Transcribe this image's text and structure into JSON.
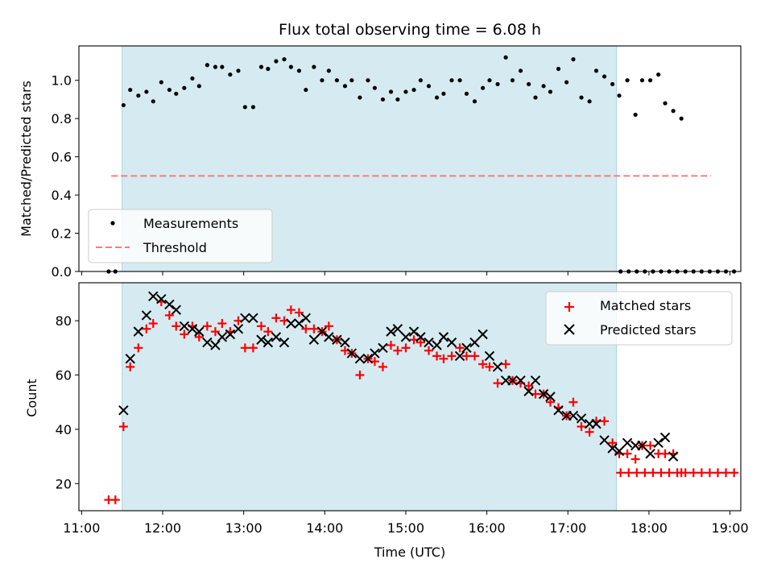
{
  "chart_data": [
    {
      "type": "scatter",
      "title": "Flux total observing time = 6.08 h",
      "xlabel": "",
      "ylabel": "Matched/Predicted stars",
      "xlim": [
        "10:58",
        "19:08"
      ],
      "ylim": [
        0,
        1.18
      ],
      "yticks": [
        "0.0",
        "0.2",
        "0.4",
        "0.6",
        "0.8",
        "1.0"
      ],
      "grid": false,
      "legend_position": "lower-left",
      "observing_window": [
        "11:30",
        "17:36"
      ],
      "observing_window_color": "#d4eaf0",
      "series": [
        {
          "name": "Measurements",
          "marker": "dot",
          "color": "#000000",
          "points": [
            [
              "11:20",
              0.0
            ],
            [
              "11:25",
              0.0
            ],
            [
              "11:31",
              0.87
            ],
            [
              "11:36",
              0.95
            ],
            [
              "11:42",
              0.92
            ],
            [
              "11:48",
              0.94
            ],
            [
              "11:53",
              0.89
            ],
            [
              "11:59",
              0.99
            ],
            [
              "12:05",
              0.95
            ],
            [
              "12:10",
              0.93
            ],
            [
              "12:16",
              0.96
            ],
            [
              "12:22",
              1.01
            ],
            [
              "12:27",
              0.97
            ],
            [
              "12:33",
              1.08
            ],
            [
              "12:39",
              1.07
            ],
            [
              "12:44",
              1.07
            ],
            [
              "12:50",
              1.03
            ],
            [
              "12:56",
              1.05
            ],
            [
              "13:01",
              0.86
            ],
            [
              "13:07",
              0.86
            ],
            [
              "13:13",
              1.07
            ],
            [
              "13:18",
              1.06
            ],
            [
              "13:24",
              1.1
            ],
            [
              "13:30",
              1.11
            ],
            [
              "13:35",
              1.07
            ],
            [
              "13:41",
              1.05
            ],
            [
              "13:46",
              0.95
            ],
            [
              "13:52",
              1.07
            ],
            [
              "13:58",
              1.0
            ],
            [
              "14:03",
              1.05
            ],
            [
              "14:09",
              1.0
            ],
            [
              "14:15",
              0.97
            ],
            [
              "14:20",
              1.0
            ],
            [
              "14:26",
              0.91
            ],
            [
              "14:32",
              1.0
            ],
            [
              "14:37",
              0.96
            ],
            [
              "14:43",
              0.9
            ],
            [
              "14:49",
              0.94
            ],
            [
              "14:54",
              0.9
            ],
            [
              "15:00",
              0.94
            ],
            [
              "15:06",
              0.95
            ],
            [
              "15:11",
              1.0
            ],
            [
              "15:17",
              0.97
            ],
            [
              "15:23",
              0.91
            ],
            [
              "15:28",
              0.93
            ],
            [
              "15:34",
              1.0
            ],
            [
              "15:40",
              1.0
            ],
            [
              "15:45",
              0.93
            ],
            [
              "15:51",
              0.89
            ],
            [
              "15:57",
              0.96
            ],
            [
              "16:02",
              1.0
            ],
            [
              "16:08",
              0.98
            ],
            [
              "16:14",
              1.12
            ],
            [
              "16:19",
              1.0
            ],
            [
              "16:25",
              1.05
            ],
            [
              "16:31",
              0.98
            ],
            [
              "16:36",
              0.91
            ],
            [
              "16:42",
              0.97
            ],
            [
              "16:47",
              0.94
            ],
            [
              "16:53",
              1.06
            ],
            [
              "16:59",
              0.99
            ],
            [
              "17:04",
              1.11
            ],
            [
              "17:10",
              0.91
            ],
            [
              "17:16",
              0.89
            ],
            [
              "17:21",
              1.05
            ],
            [
              "17:27",
              1.02
            ],
            [
              "17:33",
              0.98
            ],
            [
              "17:38",
              0.92
            ],
            [
              "17:44",
              1.0
            ],
            [
              "17:50",
              0.82
            ],
            [
              "17:55",
              1.0
            ],
            [
              "18:01",
              1.0
            ],
            [
              "18:07",
              1.03
            ],
            [
              "18:12",
              0.88
            ],
            [
              "18:18",
              0.84
            ],
            [
              "18:24",
              0.8
            ],
            [
              "17:39",
              0.0
            ],
            [
              "17:45",
              0.0
            ],
            [
              "17:51",
              0.0
            ],
            [
              "17:57",
              0.0
            ],
            [
              "18:03",
              0.0
            ],
            [
              "18:09",
              0.0
            ],
            [
              "18:15",
              0.0
            ],
            [
              "18:21",
              0.0
            ],
            [
              "18:27",
              0.0
            ],
            [
              "18:33",
              0.0
            ],
            [
              "18:39",
              0.0
            ],
            [
              "18:45",
              0.0
            ],
            [
              "18:51",
              0.0
            ],
            [
              "18:57",
              0.0
            ],
            [
              "19:03",
              0.0
            ]
          ]
        },
        {
          "name": "Threshold",
          "marker": "dashed-line",
          "color": "#f47c7c",
          "points": [
            [
              "11:22",
              0.5
            ],
            [
              "18:46",
              0.5
            ]
          ]
        }
      ]
    },
    {
      "type": "scatter",
      "title": "",
      "xlabel": "Time (UTC)",
      "ylabel": "Count",
      "xlim": [
        "10:58",
        "19:08"
      ],
      "ylim": [
        10,
        94
      ],
      "yticks": [
        "20",
        "40",
        "60",
        "80"
      ],
      "xticks": [
        "11:00",
        "12:00",
        "13:00",
        "14:00",
        "15:00",
        "16:00",
        "17:00",
        "18:00",
        "19:00"
      ],
      "grid": false,
      "legend_position": "upper-right",
      "observing_window": [
        "11:30",
        "17:36"
      ],
      "observing_window_color": "#d4eaf0",
      "series": [
        {
          "name": "Matched stars",
          "marker": "plus",
          "color": "#ff0000",
          "points": [
            [
              "11:20",
              14
            ],
            [
              "11:25",
              14
            ],
            [
              "11:31",
              41
            ],
            [
              "11:36",
              63
            ],
            [
              "11:42",
              70
            ],
            [
              "11:48",
              77
            ],
            [
              "11:53",
              79
            ],
            [
              "11:59",
              87
            ],
            [
              "12:05",
              82
            ],
            [
              "12:10",
              78
            ],
            [
              "12:16",
              75
            ],
            [
              "12:22",
              78
            ],
            [
              "12:27",
              74
            ],
            [
              "12:33",
              78
            ],
            [
              "12:39",
              76
            ],
            [
              "12:44",
              79
            ],
            [
              "12:50",
              76
            ],
            [
              "12:56",
              80
            ],
            [
              "13:01",
              70
            ],
            [
              "13:07",
              70
            ],
            [
              "13:13",
              78
            ],
            [
              "13:18",
              76
            ],
            [
              "13:24",
              81
            ],
            [
              "13:30",
              80
            ],
            [
              "13:35",
              84
            ],
            [
              "13:41",
              83
            ],
            [
              "13:46",
              77
            ],
            [
              "13:52",
              77
            ],
            [
              "13:58",
              76
            ],
            [
              "14:03",
              78
            ],
            [
              "14:09",
              73
            ],
            [
              "14:15",
              69
            ],
            [
              "14:20",
              68
            ],
            [
              "14:26",
              60
            ],
            [
              "14:32",
              66
            ],
            [
              "14:37",
              65
            ],
            [
              "14:43",
              63
            ],
            [
              "14:49",
              71
            ],
            [
              "14:54",
              69
            ],
            [
              "15:00",
              70
            ],
            [
              "15:06",
              73
            ],
            [
              "15:11",
              72
            ],
            [
              "15:17",
              69
            ],
            [
              "15:23",
              67
            ],
            [
              "15:28",
              66
            ],
            [
              "15:34",
              67
            ],
            [
              "15:40",
              70
            ],
            [
              "15:45",
              67
            ],
            [
              "15:51",
              67
            ],
            [
              "15:57",
              64
            ],
            [
              "16:02",
              63
            ],
            [
              "16:08",
              57
            ],
            [
              "16:14",
              64
            ],
            [
              "16:19",
              58
            ],
            [
              "16:25",
              57
            ],
            [
              "16:31",
              56
            ],
            [
              "16:36",
              53
            ],
            [
              "16:42",
              53
            ],
            [
              "16:47",
              50
            ],
            [
              "16:53",
              48
            ],
            [
              "16:59",
              45
            ],
            [
              "17:04",
              50
            ],
            [
              "17:10",
              41
            ],
            [
              "17:16",
              39
            ],
            [
              "17:21",
              43
            ],
            [
              "17:27",
              43
            ],
            [
              "17:33",
              35
            ],
            [
              "17:38",
              31
            ],
            [
              "17:44",
              31
            ],
            [
              "17:50",
              29
            ],
            [
              "17:55",
              34
            ],
            [
              "18:01",
              34
            ],
            [
              "18:07",
              31
            ],
            [
              "18:12",
              31
            ],
            [
              "18:18",
              31
            ],
            [
              "18:24",
              24
            ],
            [
              "17:39",
              24
            ],
            [
              "17:45",
              24
            ],
            [
              "17:51",
              24
            ],
            [
              "17:57",
              24
            ],
            [
              "18:03",
              24
            ],
            [
              "18:09",
              24
            ],
            [
              "18:15",
              24
            ],
            [
              "18:21",
              24
            ],
            [
              "18:27",
              24
            ],
            [
              "18:33",
              24
            ],
            [
              "18:39",
              24
            ],
            [
              "18:45",
              24
            ],
            [
              "18:51",
              24
            ],
            [
              "18:57",
              24
            ],
            [
              "19:03",
              24
            ]
          ]
        },
        {
          "name": "Predicted stars",
          "marker": "x",
          "color": "#000000",
          "points": [
            [
              "11:31",
              47
            ],
            [
              "11:36",
              66
            ],
            [
              "11:42",
              76
            ],
            [
              "11:48",
              82
            ],
            [
              "11:53",
              89
            ],
            [
              "11:59",
              88
            ],
            [
              "12:05",
              86
            ],
            [
              "12:10",
              84
            ],
            [
              "12:16",
              78
            ],
            [
              "12:22",
              77
            ],
            [
              "12:27",
              76
            ],
            [
              "12:33",
              72
            ],
            [
              "12:39",
              71
            ],
            [
              "12:44",
              74
            ],
            [
              "12:50",
              75
            ],
            [
              "12:56",
              77
            ],
            [
              "13:01",
              81
            ],
            [
              "13:07",
              81
            ],
            [
              "13:13",
              73
            ],
            [
              "13:18",
              72
            ],
            [
              "13:24",
              74
            ],
            [
              "13:30",
              72
            ],
            [
              "13:35",
              79
            ],
            [
              "13:41",
              79
            ],
            [
              "13:46",
              81
            ],
            [
              "13:52",
              73
            ],
            [
              "13:58",
              76
            ],
            [
              "14:03",
              74
            ],
            [
              "14:09",
              73
            ],
            [
              "14:15",
              72
            ],
            [
              "14:20",
              68
            ],
            [
              "14:26",
              66
            ],
            [
              "14:32",
              66
            ],
            [
              "14:37",
              68
            ],
            [
              "14:43",
              70
            ],
            [
              "14:49",
              76
            ],
            [
              "14:54",
              77
            ],
            [
              "15:00",
              74
            ],
            [
              "15:06",
              76
            ],
            [
              "15:11",
              74
            ],
            [
              "15:17",
              72
            ],
            [
              "15:23",
              71
            ],
            [
              "15:28",
              74
            ],
            [
              "15:34",
              72
            ],
            [
              "15:40",
              67
            ],
            [
              "15:45",
              70
            ],
            [
              "15:51",
              72
            ],
            [
              "15:57",
              75
            ],
            [
              "16:02",
              67
            ],
            [
              "16:08",
              63
            ],
            [
              "16:14",
              58
            ],
            [
              "16:19",
              58
            ],
            [
              "16:25",
              58
            ],
            [
              "16:31",
              54
            ],
            [
              "16:36",
              58
            ],
            [
              "16:42",
              53
            ],
            [
              "16:47",
              52
            ],
            [
              "16:53",
              47
            ],
            [
              "16:59",
              45
            ],
            [
              "17:04",
              45
            ],
            [
              "17:10",
              44
            ],
            [
              "17:16",
              42
            ],
            [
              "17:21",
              42
            ],
            [
              "17:27",
              36
            ],
            [
              "17:33",
              33
            ],
            [
              "17:38",
              32
            ],
            [
              "17:44",
              35
            ],
            [
              "17:50",
              34
            ],
            [
              "17:55",
              34
            ],
            [
              "18:01",
              31
            ],
            [
              "18:07",
              35
            ],
            [
              "18:12",
              37
            ],
            [
              "18:18",
              30
            ]
          ]
        }
      ]
    }
  ]
}
